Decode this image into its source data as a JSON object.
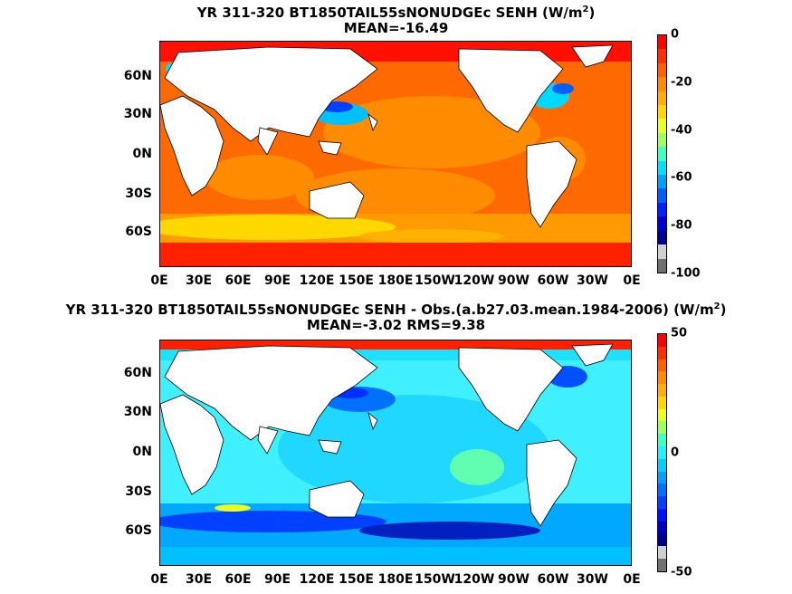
{
  "panels": [
    {
      "title_line1": "YR 311-320 BT1850TAIL55sNONUDGEc  SENH (W/m",
      "title_sup": "2",
      "title_close": ")",
      "title_line2": "MEAN=-16.49",
      "colorbar_ticks": [
        "0",
        "-20",
        "-40",
        "-60",
        "-80",
        "-100"
      ],
      "colorbar_colors": [
        "#ff0000",
        "#ff3000",
        "#ff6000",
        "#ff8c00",
        "#ffb000",
        "#ffd800",
        "#e8ff20",
        "#a0ff60",
        "#40ffc0",
        "#00e0ff",
        "#00a0ff",
        "#0060ff",
        "#0020ff",
        "#0000d0",
        "#000090",
        "#d0d0d0",
        "#707070"
      ],
      "colorbar_range": [
        -100,
        0
      ]
    },
    {
      "title_line1": "YR 311-320 BT1850TAIL55sNONUDGEc SENH - Obs.(a.b27.03.mean.1984-2006) (W/m",
      "title_sup": "2",
      "title_close": ")",
      "title_line2": "MEAN=-3.02 RMS=9.38",
      "colorbar_ticks": [
        "50",
        "0",
        "-50"
      ],
      "colorbar_colors": [
        "#ff0000",
        "#ff3000",
        "#ff6000",
        "#ff8c00",
        "#ffb000",
        "#ffd800",
        "#e8ff20",
        "#a0ff60",
        "#40ffc0",
        "#20f0ff",
        "#00d0ff",
        "#00a0ff",
        "#0070ff",
        "#0040ff",
        "#0010ff",
        "#0000c0",
        "#000090",
        "#d0d0d0",
        "#707070"
      ],
      "colorbar_range": [
        -50,
        50
      ]
    }
  ],
  "lat_labels": [
    "60N",
    "30N",
    "0N",
    "30S",
    "60S"
  ],
  "lon_labels": [
    "0E",
    "30E",
    "60E",
    "90E",
    "120E",
    "150E",
    "180E",
    "150W",
    "120W",
    "90W",
    "60W",
    "30W",
    "0E"
  ],
  "colors": {
    "land": "#ffffff",
    "coast": "#000000"
  }
}
